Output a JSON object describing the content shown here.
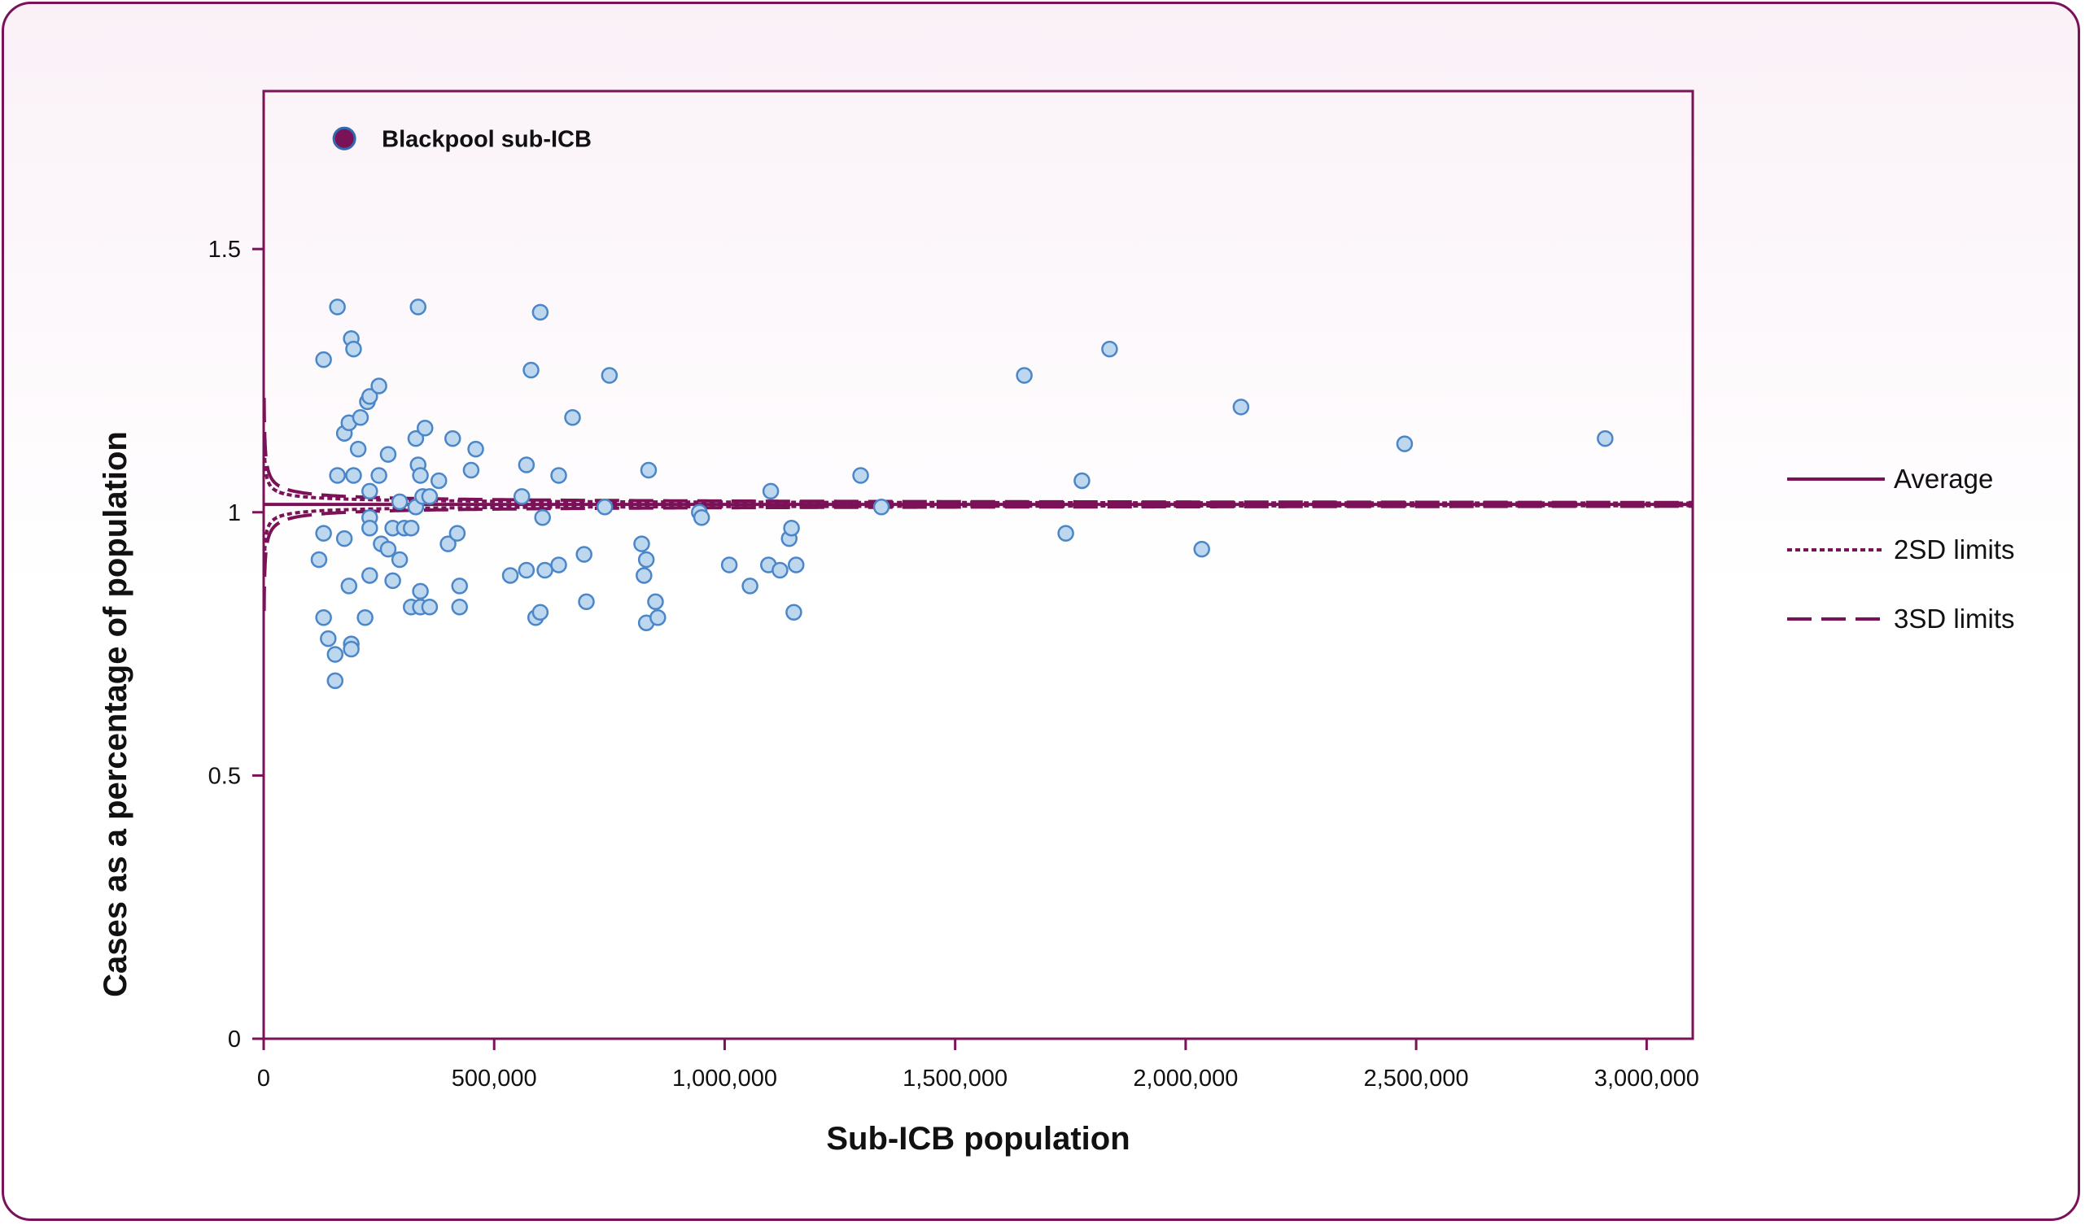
{
  "chart_data": {
    "type": "scatter",
    "xlabel": "Sub-ICB population",
    "ylabel": "Cases as a percentage of population",
    "xlim": [
      0,
      3100000
    ],
    "ylim": [
      0,
      1.8
    ],
    "x_ticks": [
      0,
      500000,
      1000000,
      1500000,
      2000000,
      2500000,
      3000000
    ],
    "x_tick_labels": [
      "0",
      "500,000",
      "1,000,000",
      "1,500,000",
      "2,000,000",
      "2,500,000",
      "3,000,000"
    ],
    "y_ticks": [
      0,
      0.5,
      1,
      1.5
    ],
    "y_tick_labels": [
      "0",
      "0.5",
      "1",
      "1.5"
    ],
    "grid": false,
    "legend_position": "right",
    "average": 1.015,
    "funnel_k2": 4.25,
    "funnel_k3": 6.4,
    "colors": {
      "accent": "#7b1157",
      "point_fill": "#bdd7ee",
      "point_stroke": "#4a86c8",
      "highlight_fill": "#7b1157",
      "highlight_stroke": "#2e6bb0"
    },
    "legend": [
      {
        "label": "Average",
        "style": "solid"
      },
      {
        "label": "2SD limits",
        "style": "dotted"
      },
      {
        "label": "3SD limits",
        "style": "dashed"
      }
    ],
    "highlight": {
      "label": "Blackpool sub-ICB",
      "x": 175000,
      "y": 1.71
    },
    "points": [
      [
        120000,
        0.91
      ],
      [
        130000,
        1.29
      ],
      [
        130000,
        0.8
      ],
      [
        140000,
        0.76
      ],
      [
        130000,
        0.96
      ],
      [
        155000,
        0.73
      ],
      [
        160000,
        1.39
      ],
      [
        160000,
        1.07
      ],
      [
        155000,
        0.68
      ],
      [
        175000,
        1.15
      ],
      [
        175000,
        0.95
      ],
      [
        185000,
        1.17
      ],
      [
        185000,
        0.86
      ],
      [
        190000,
        1.33
      ],
      [
        195000,
        1.31
      ],
      [
        190000,
        0.75
      ],
      [
        190000,
        0.74
      ],
      [
        195000,
        1.07
      ],
      [
        205000,
        1.12
      ],
      [
        210000,
        1.18
      ],
      [
        220000,
        0.8
      ],
      [
        225000,
        1.21
      ],
      [
        230000,
        1.22
      ],
      [
        230000,
        1.04
      ],
      [
        230000,
        0.99
      ],
      [
        230000,
        0.97
      ],
      [
        230000,
        0.88
      ],
      [
        250000,
        1.24
      ],
      [
        250000,
        1.07
      ],
      [
        255000,
        0.94
      ],
      [
        270000,
        1.11
      ],
      [
        270000,
        0.93
      ],
      [
        280000,
        0.97
      ],
      [
        280000,
        0.87
      ],
      [
        295000,
        1.02
      ],
      [
        295000,
        0.91
      ],
      [
        305000,
        0.97
      ],
      [
        320000,
        0.82
      ],
      [
        320000,
        0.97
      ],
      [
        330000,
        1.14
      ],
      [
        330000,
        1.01
      ],
      [
        335000,
        1.39
      ],
      [
        335000,
        1.09
      ],
      [
        340000,
        1.07
      ],
      [
        340000,
        0.85
      ],
      [
        340000,
        0.82
      ],
      [
        345000,
        1.03
      ],
      [
        350000,
        1.16
      ],
      [
        360000,
        1.03
      ],
      [
        360000,
        0.82
      ],
      [
        380000,
        1.06
      ],
      [
        400000,
        0.94
      ],
      [
        410000,
        1.14
      ],
      [
        420000,
        0.96
      ],
      [
        425000,
        0.86
      ],
      [
        425000,
        0.82
      ],
      [
        450000,
        1.08
      ],
      [
        460000,
        1.12
      ],
      [
        535000,
        0.88
      ],
      [
        560000,
        1.03
      ],
      [
        570000,
        1.09
      ],
      [
        570000,
        0.89
      ],
      [
        580000,
        1.27
      ],
      [
        590000,
        0.8
      ],
      [
        600000,
        1.38
      ],
      [
        600000,
        0.81
      ],
      [
        605000,
        0.99
      ],
      [
        610000,
        0.89
      ],
      [
        640000,
        1.07
      ],
      [
        640000,
        0.9
      ],
      [
        670000,
        1.18
      ],
      [
        695000,
        0.92
      ],
      [
        700000,
        0.83
      ],
      [
        740000,
        1.01
      ],
      [
        750000,
        1.26
      ],
      [
        820000,
        0.94
      ],
      [
        825000,
        0.88
      ],
      [
        830000,
        0.91
      ],
      [
        830000,
        0.79
      ],
      [
        835000,
        1.08
      ],
      [
        850000,
        0.83
      ],
      [
        855000,
        0.8
      ],
      [
        945000,
        1.0
      ],
      [
        950000,
        0.99
      ],
      [
        1010000,
        0.9
      ],
      [
        1055000,
        0.86
      ],
      [
        1095000,
        0.9
      ],
      [
        1100000,
        1.04
      ],
      [
        1120000,
        0.89
      ],
      [
        1140000,
        0.95
      ],
      [
        1145000,
        0.97
      ],
      [
        1150000,
        0.81
      ],
      [
        1155000,
        0.9
      ],
      [
        1295000,
        1.07
      ],
      [
        1340000,
        1.01
      ],
      [
        1650000,
        1.26
      ],
      [
        1740000,
        0.96
      ],
      [
        1775000,
        1.06
      ],
      [
        1835000,
        1.31
      ],
      [
        2035000,
        0.93
      ],
      [
        2120000,
        1.2
      ],
      [
        2475000,
        1.13
      ],
      [
        2910000,
        1.14
      ]
    ]
  }
}
